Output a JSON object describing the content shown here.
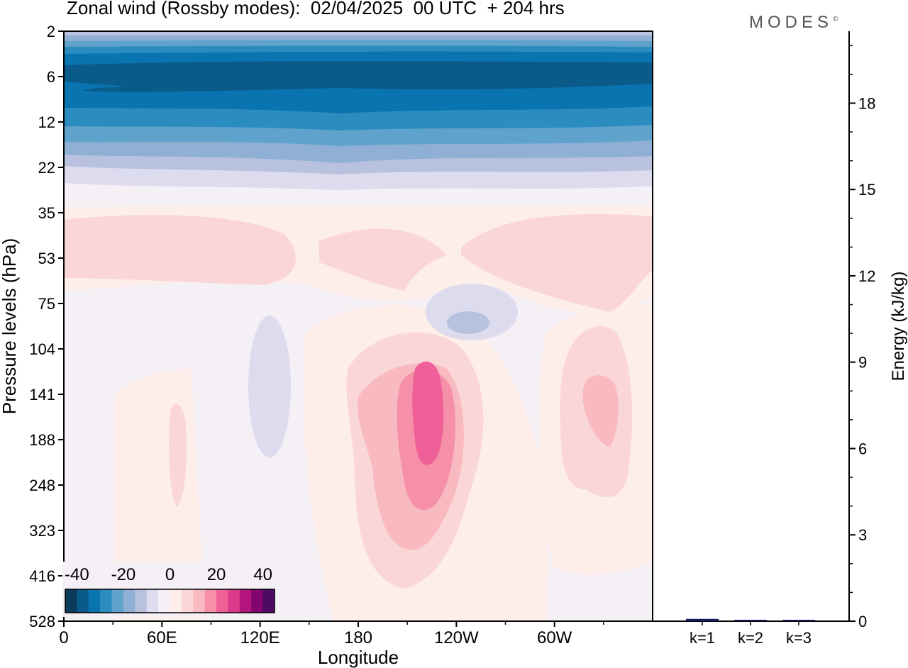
{
  "title": "Zonal wind (Rossby modes):  02/04/2025  00 UTC  + 204 hrs",
  "logo_text": "MODES",
  "logo_mark": "©",
  "colors": {
    "frame": "#000000",
    "bar": "#1a1a5e",
    "palette": [
      "#0b3c5d",
      "#0a5a8a",
      "#0a74b0",
      "#2b8cc0",
      "#5fa2cc",
      "#8fb0d4",
      "#b8c2de",
      "#dcdcee",
      "#f5eff6",
      "#fdeeea",
      "#fbd6d6",
      "#f8b9c0",
      "#f590a8",
      "#ef5f98",
      "#d93a8c",
      "#b3157c",
      "#82066e",
      "#4f0a62"
    ]
  },
  "chart_data": [
    {
      "type": "heatmap",
      "title": "Zonal wind (Rossby modes):  02/04/2025  00 UTC  + 204 hrs",
      "xlabel": "Longitude",
      "ylabel": "Pressure levels (hPa)",
      "x_ticks": [
        "0",
        "60E",
        "120E",
        "180",
        "120W",
        "60W"
      ],
      "x_tick_values": [
        0,
        60,
        120,
        180,
        240,
        300
      ],
      "xlim": [
        0,
        360
      ],
      "y_ticks": [
        "2",
        "6",
        "12",
        "22",
        "35",
        "53",
        "75",
        "104",
        "141",
        "188",
        "248",
        "323",
        "416",
        "528"
      ],
      "y_scale": "categorical pressure levels, top to bottom",
      "colorbar": {
        "labels": [
          "-40",
          "-20",
          "0",
          "20",
          "40"
        ],
        "label_values": [
          -40,
          -20,
          0,
          20,
          40
        ],
        "range": [
          -45,
          45
        ],
        "n_colors": 18,
        "placement": "bottom-left inside plot"
      },
      "features": [
        {
          "level_range": [
            "2",
            "22"
          ],
          "lon_range": [
            0,
            360
          ],
          "value": -30,
          "note": "easterly band, strongest near 6 hPa"
        },
        {
          "level_range": [
            "35",
            "75"
          ],
          "lon_range": [
            0,
            360
          ],
          "value": 8,
          "note": "weak westerlies"
        },
        {
          "level_range": [
            "104",
            "323"
          ],
          "lon_range": [
            160,
            270
          ],
          "value": 30,
          "note": "westerly maximum near 210-230 at 141-188 hPa"
        },
        {
          "level_range": [
            "104",
            "248"
          ],
          "lon_range": [
            300,
            350
          ],
          "value": 15
        },
        {
          "level_range": [
            "104",
            "188"
          ],
          "lon_range": [
            110,
            140
          ],
          "value": -4
        },
        {
          "level_range": [
            "75",
            "104"
          ],
          "lon_range": [
            230,
            265
          ],
          "value": -5
        }
      ]
    },
    {
      "type": "bar",
      "categories": [
        "k=1",
        "k=2",
        "k=3"
      ],
      "values": [
        0.08,
        0.02,
        0.02
      ],
      "ylabel": "Energy (kJ/kg)",
      "ylim": [
        0,
        20.5
      ],
      "y_ticks": [
        0,
        3,
        6,
        9,
        12,
        15,
        18
      ]
    }
  ]
}
